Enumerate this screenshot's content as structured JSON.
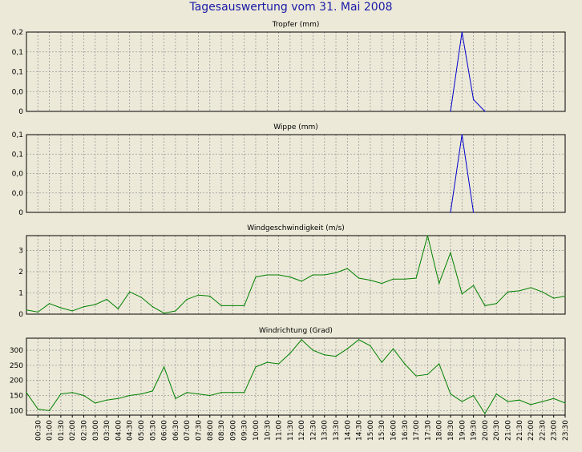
{
  "page": {
    "title": "Tagesauswertung vom 31. Mai 2008"
  },
  "colors": {
    "background": "#ece9d8",
    "title": "#1a1aa8",
    "series_blue": "#0000cc",
    "series_green": "#008000",
    "grid": "#9a9a9a"
  },
  "chart_data": [
    {
      "type": "line",
      "title": "Tropfer (mm)",
      "yticks": [
        "0,2",
        "0,1",
        "0,1",
        "0,0",
        "0"
      ],
      "ytick_values": [
        0.2,
        0.15,
        0.1,
        0.05,
        0
      ],
      "ylim": [
        0,
        0.2
      ],
      "grid": true,
      "series": [
        {
          "color": "#0000cc",
          "x": [
            "18:30",
            "19:00",
            "19:30",
            "20:00"
          ],
          "values": [
            0,
            0.2,
            0.03,
            0
          ]
        }
      ]
    },
    {
      "type": "line",
      "title": "Wippe (mm)",
      "yticks": [
        "0,1",
        "0,1",
        "0,0",
        "0,0",
        "0"
      ],
      "ytick_values": [
        0.1,
        0.075,
        0.05,
        0.025,
        0
      ],
      "ylim": [
        0,
        0.1
      ],
      "grid": true,
      "series": [
        {
          "color": "#0000cc",
          "x": [
            "18:30",
            "19:00",
            "19:30"
          ],
          "values": [
            0,
            0.1,
            0
          ]
        }
      ]
    },
    {
      "type": "line",
      "title": "Windgeschwindigkeit (m/s)",
      "yticks": [
        "3",
        "2",
        "1",
        "0"
      ],
      "ytick_values": [
        3,
        2,
        1,
        0
      ],
      "ylim": [
        0,
        3.7
      ],
      "grid": true,
      "series": [
        {
          "color": "#008000",
          "x": [
            "00:00",
            "00:30",
            "01:00",
            "01:30",
            "02:00",
            "02:30",
            "03:00",
            "03:30",
            "04:00",
            "04:30",
            "05:00",
            "05:30",
            "06:00",
            "06:30",
            "07:00",
            "07:30",
            "08:00",
            "08:30",
            "09:00",
            "09:30",
            "10:00",
            "10:30",
            "11:00",
            "11:30",
            "12:00",
            "12:30",
            "13:00",
            "13:30",
            "14:00",
            "14:30",
            "15:00",
            "15:30",
            "16:00",
            "16:30",
            "17:00",
            "17:30",
            "18:00",
            "18:30",
            "19:00",
            "19:30",
            "20:00",
            "20:30",
            "21:00",
            "21:30",
            "22:00",
            "22:30",
            "23:00",
            "23:30"
          ],
          "values": [
            0.2,
            0.1,
            0.5,
            0.3,
            0.15,
            0.35,
            0.45,
            0.7,
            0.25,
            1.05,
            0.8,
            0.35,
            0.05,
            0.15,
            0.7,
            0.9,
            0.85,
            0.4,
            0.4,
            0.4,
            1.75,
            1.85,
            1.85,
            1.75,
            1.55,
            1.85,
            1.85,
            1.95,
            2.15,
            1.7,
            1.6,
            1.45,
            1.65,
            1.65,
            1.7,
            3.7,
            1.45,
            2.9,
            0.95,
            1.35,
            0.4,
            0.5,
            1.05,
            1.1,
            1.25,
            1.05,
            0.75,
            0.85
          ]
        }
      ]
    },
    {
      "type": "line",
      "title": "Windrichtung (Grad)",
      "yticks": [
        "300",
        "250",
        "200",
        "150",
        "100"
      ],
      "ytick_values": [
        300,
        250,
        200,
        150,
        100
      ],
      "ylim": [
        85,
        340
      ],
      "grid": true,
      "xticks": [
        "00:30",
        "01:00",
        "01:30",
        "02:00",
        "02:30",
        "03:00",
        "03:30",
        "04:00",
        "04:30",
        "05:00",
        "05:30",
        "06:00",
        "06:30",
        "07:00",
        "07:30",
        "08:00",
        "08:30",
        "09:00",
        "09:30",
        "10:00",
        "10:30",
        "11:00",
        "11:30",
        "12:00",
        "12:30",
        "13:00",
        "13:30",
        "14:00",
        "14:30",
        "15:00",
        "15:30",
        "16:00",
        "16:30",
        "17:00",
        "17:30",
        "18:00",
        "18:30",
        "19:00",
        "19:30",
        "20:00",
        "20:30",
        "21:00",
        "21:30",
        "22:00",
        "22:30",
        "23:00",
        "23:30"
      ],
      "series": [
        {
          "color": "#008000",
          "x": [
            "00:00",
            "00:30",
            "01:00",
            "01:30",
            "02:00",
            "02:30",
            "03:00",
            "03:30",
            "04:00",
            "04:30",
            "05:00",
            "05:30",
            "06:00",
            "06:30",
            "07:00",
            "07:30",
            "08:00",
            "08:30",
            "09:00",
            "09:30",
            "10:00",
            "10:30",
            "11:00",
            "11:30",
            "12:00",
            "12:30",
            "13:00",
            "13:30",
            "14:00",
            "14:30",
            "15:00",
            "15:30",
            "16:00",
            "16:30",
            "17:00",
            "17:30",
            "18:00",
            "18:30",
            "19:00",
            "19:30",
            "20:00",
            "20:30",
            "21:00",
            "21:30",
            "22:00",
            "22:30",
            "23:00",
            "23:30"
          ],
          "values": [
            160,
            105,
            100,
            155,
            160,
            150,
            125,
            135,
            140,
            150,
            155,
            165,
            245,
            140,
            160,
            155,
            150,
            160,
            160,
            160,
            245,
            260,
            255,
            290,
            335,
            300,
            285,
            280,
            305,
            335,
            315,
            260,
            305,
            255,
            215,
            220,
            255,
            155,
            130,
            150,
            90,
            155,
            130,
            135,
            120,
            130,
            140,
            125
          ]
        }
      ]
    }
  ]
}
